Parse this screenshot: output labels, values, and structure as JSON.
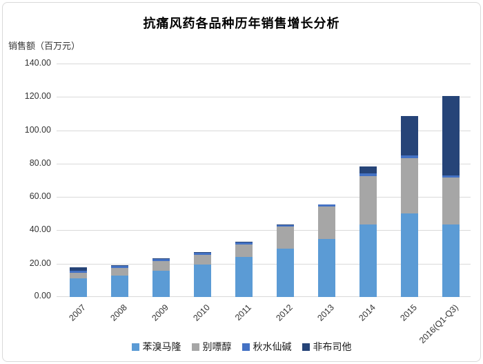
{
  "chart_data": {
    "type": "bar",
    "stacked": true,
    "title": "抗痛风药各品种历年销售增长分析",
    "unit_label": "销售额（百万元）",
    "categories": [
      "2007",
      "2008",
      "2009",
      "2010",
      "2011",
      "2012",
      "2013",
      "2014",
      "2015",
      "2016(Q1-Q3)"
    ],
    "series": [
      {
        "name": "苯溴马隆",
        "color": "#5B9BD5",
        "values": [
          11.0,
          13.0,
          15.8,
          19.5,
          24.0,
          28.9,
          34.6,
          43.3,
          50.2,
          43.4
        ]
      },
      {
        "name": "别嘌醇",
        "color": "#A6A6A6",
        "values": [
          3.6,
          4.5,
          5.8,
          5.9,
          7.6,
          13.2,
          19.5,
          29.2,
          33.0,
          28.3
        ]
      },
      {
        "name": "秋水仙碱",
        "color": "#4472C4",
        "values": [
          1.2,
          1.0,
          1.2,
          1.2,
          1.1,
          1.1,
          1.2,
          1.5,
          1.6,
          1.1
        ]
      },
      {
        "name": "非布司他",
        "color": "#264478",
        "values": [
          2.0,
          0.6,
          0.4,
          0.4,
          0.4,
          0.4,
          0.4,
          4.2,
          23.8,
          47.8
        ]
      }
    ],
    "totals": [
      17.8,
      19.1,
      23.2,
      27.0,
      33.1,
      43.6,
      55.7,
      78.2,
      108.6,
      120.6
    ],
    "ylim": [
      0,
      140
    ],
    "y_ticks": [
      "0.00",
      "20.00",
      "40.00",
      "60.00",
      "80.00",
      "100.00",
      "120.00",
      "140.00"
    ],
    "grid": "horizontal",
    "legend_position": "bottom",
    "legend": [
      {
        "label": "苯溴马隆",
        "color": "#5B9BD5"
      },
      {
        "label": "别嘌醇",
        "color": "#A6A6A6"
      },
      {
        "label": "秋水仙碱",
        "color": "#4472C4"
      },
      {
        "label": "非布司他",
        "color": "#264478"
      }
    ],
    "colors": {
      "gridline": "#d9d9d9",
      "axis_text": "#333333",
      "title_text": "#000000"
    }
  }
}
